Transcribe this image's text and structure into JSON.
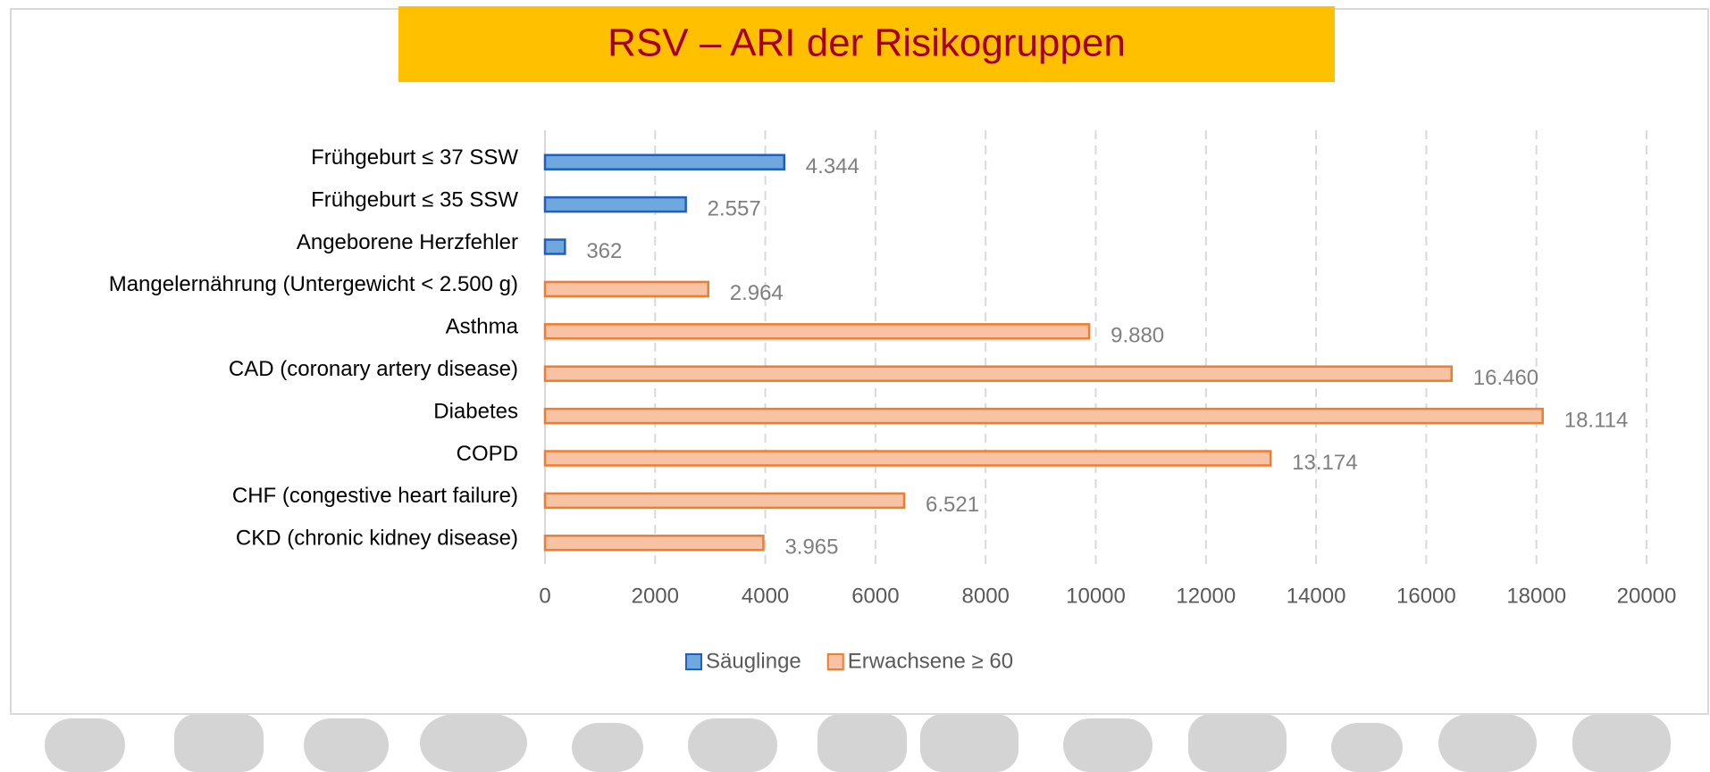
{
  "chart_data": {
    "type": "barh",
    "title": "RSV – ARI der Risikogruppen",
    "categories": [
      "Frühgeburt ≤ 37 SSW",
      "Frühgeburt ≤ 35 SSW",
      "Angeborene Herzfehler",
      "Mangelernährung (Untergewicht < 2.500 g)",
      "Asthma",
      "CAD (coronary artery disease)",
      "Diabetes",
      "COPD",
      "CHF (congestive heart failure)",
      "CKD (chronic kidney disease)"
    ],
    "series": [
      {
        "name": "Säuglinge",
        "color": "#6fa8dc",
        "edgecolor": "#1f5fbf",
        "values": [
          4344,
          2557,
          362,
          null,
          null,
          null,
          null,
          null,
          null,
          null
        ],
        "value_labels": [
          "4.344",
          "2.557",
          "362",
          null,
          null,
          null,
          null,
          null,
          null,
          null
        ]
      },
      {
        "name": "Erwachsene ≥ 60",
        "color": "#f8c3a4",
        "edgecolor": "#ed7d31",
        "values": [
          null,
          null,
          null,
          2964,
          9880,
          16460,
          18114,
          13174,
          6521,
          3965
        ],
        "value_labels": [
          null,
          null,
          null,
          "2.964",
          "9.880",
          "16.460",
          "18.114",
          "13.174",
          "6.521",
          "3.965"
        ]
      }
    ],
    "xlim": [
      0,
      20000
    ],
    "xticks": [
      0,
      2000,
      4000,
      6000,
      8000,
      10000,
      12000,
      14000,
      16000,
      18000,
      20000
    ],
    "grid": true,
    "legend": "bottom"
  }
}
